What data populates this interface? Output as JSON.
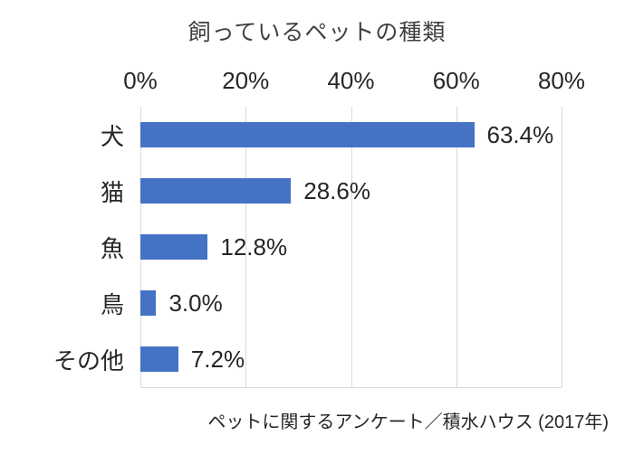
{
  "chart_data": {
    "type": "bar",
    "orientation": "horizontal",
    "title": "飼っているペットの種類",
    "categories": [
      "犬",
      "猫",
      "魚",
      "鳥",
      "その他"
    ],
    "values": [
      63.4,
      28.6,
      12.8,
      3.0,
      7.2
    ],
    "value_labels": [
      "63.4%",
      "28.6%",
      "12.8%",
      "3.0%",
      "7.2%"
    ],
    "x_ticks": [
      "0%",
      "20%",
      "40%",
      "60%",
      "80%"
    ],
    "xlim": [
      0,
      80
    ],
    "grid": true,
    "bar_color": "#4472C4",
    "gridline_color": "#d9d9d9",
    "source": "ペットに関するアンケート／積水ハウス (2017年)"
  }
}
